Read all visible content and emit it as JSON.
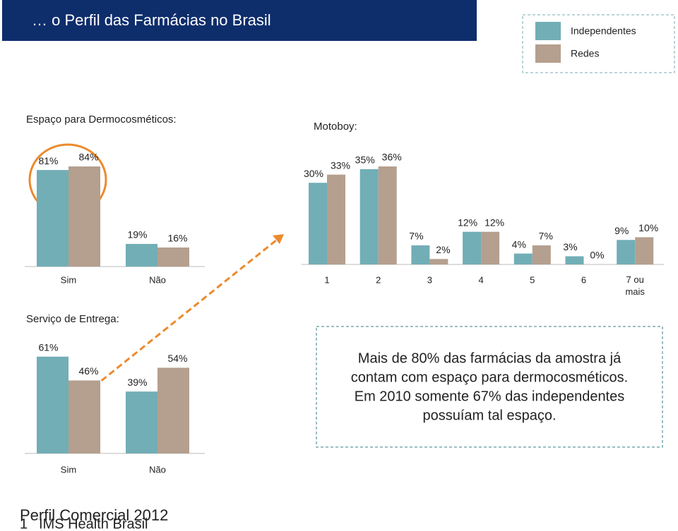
{
  "header": {
    "title": "… o Perfil das Farmácias no Brasil"
  },
  "chart_data": [
    {
      "type": "bar",
      "title": "Espaço para Dermocosméticos:",
      "categories": [
        "Sim",
        "Não"
      ],
      "series": [
        {
          "name": "Independentes",
          "color": "#72aeb6",
          "values": [
            81,
            19
          ],
          "value_labels": [
            "81%",
            "19%"
          ]
        },
        {
          "name": "Redes",
          "color": "#b59f8e",
          "values": [
            84,
            16
          ],
          "value_labels": [
            "84%",
            "16%"
          ]
        }
      ]
    },
    {
      "type": "bar",
      "title": "Motoboy:",
      "categories": [
        "1",
        "2",
        "3",
        "4",
        "5",
        "6",
        "7 ou mais"
      ],
      "series": [
        {
          "name": "Independentes",
          "color": "#72aeb6",
          "values": [
            30,
            35,
            7,
            12,
            4,
            3,
            9
          ],
          "value_labels": [
            "30%",
            "35%",
            "7%",
            "12%",
            "4%",
            "3%",
            "9%"
          ]
        },
        {
          "name": "Redes",
          "color": "#b59f8e",
          "values": [
            33,
            36,
            2,
            12,
            7,
            0,
            10
          ],
          "value_labels": [
            "33%",
            "36%",
            "2%",
            "12%",
            "7%",
            "0%",
            "10%"
          ]
        }
      ]
    },
    {
      "type": "bar",
      "title": "Serviço de Entrega:",
      "categories": [
        "Sim",
        "Não"
      ],
      "series": [
        {
          "name": "Independentes",
          "color": "#72aeb6",
          "values": [
            61,
            39
          ],
          "value_labels": [
            "61%",
            "39%"
          ]
        },
        {
          "name": "Redes",
          "color": "#b59f8e",
          "values": [
            46,
            54
          ],
          "value_labels": [
            "46%",
            "54%"
          ]
        }
      ]
    }
  ],
  "note": [
    "Mais de 80% das farmácias da amostra já",
    "contam com espaço para dermocosméticos.",
    "Em 2010 somente 67% das independentes",
    "possuíam tal espaço."
  ],
  "footer": {
    "title": "Perfil Comercial 2012",
    "page": "1",
    "company": "IMS Health Brasil"
  }
}
